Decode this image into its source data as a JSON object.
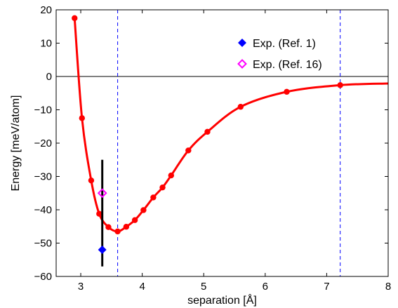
{
  "chart_data": {
    "type": "line",
    "title": "",
    "xlabel": "separation [Å]",
    "ylabel": "Energy [meV/atom]",
    "xlim": [
      2.6,
      8
    ],
    "ylim": [
      -60,
      20
    ],
    "x_ticks": [
      3,
      4,
      5,
      6,
      7,
      8
    ],
    "y_ticks": [
      20,
      10,
      0,
      -10,
      -20,
      -30,
      -40,
      -50,
      -60
    ],
    "x_tick_labels": [
      "3",
      "4",
      "5",
      "6",
      "7",
      "8"
    ],
    "y_tick_labels": [
      "20",
      "10",
      "0",
      "−10",
      "−20",
      "−30",
      "−40",
      "−50",
      "−60"
    ],
    "grid": false,
    "legend_position": "top-right",
    "series": [
      {
        "x": [
          2.9,
          3.02,
          3.17,
          3.3,
          3.45,
          3.6,
          3.74,
          3.88,
          4.02,
          4.18,
          4.33,
          4.47,
          4.75,
          5.06,
          5.6,
          6.35,
          7.22,
          8.0
        ],
        "y": [
          17.5,
          -12.5,
          -31.2,
          -41.2,
          -45.2,
          -46.5,
          -45.1,
          -43.1,
          -40.1,
          -36.3,
          -33.3,
          -29.7,
          -22.2,
          -16.6,
          -9.1,
          -4.6,
          -2.6,
          -2.1
        ],
        "color": "#ff0000",
        "marker": "circle",
        "line": "smooth"
      },
      {
        "name": "Exp. (Ref. 1)",
        "x": [
          3.35
        ],
        "y": [
          -52
        ],
        "color": "#0000ff",
        "marker": "filled-diamond"
      },
      {
        "name": "Exp. (Ref. 16)",
        "x": [
          3.35
        ],
        "y": [
          -35
        ],
        "color": "#ff00ff",
        "marker": "open-diamond"
      }
    ],
    "error_bar": {
      "x": 3.35,
      "y_min": -57,
      "y_max": -25,
      "color": "#000000"
    },
    "reference_lines": [
      {
        "orientation": "horizontal",
        "value": 0,
        "style": "solid",
        "color": "#000000"
      },
      {
        "orientation": "vertical",
        "value": 3.6,
        "style": "dashed",
        "color": "#0000ff"
      },
      {
        "orientation": "vertical",
        "value": 7.22,
        "style": "dashed",
        "color": "#0000ff"
      }
    ]
  }
}
